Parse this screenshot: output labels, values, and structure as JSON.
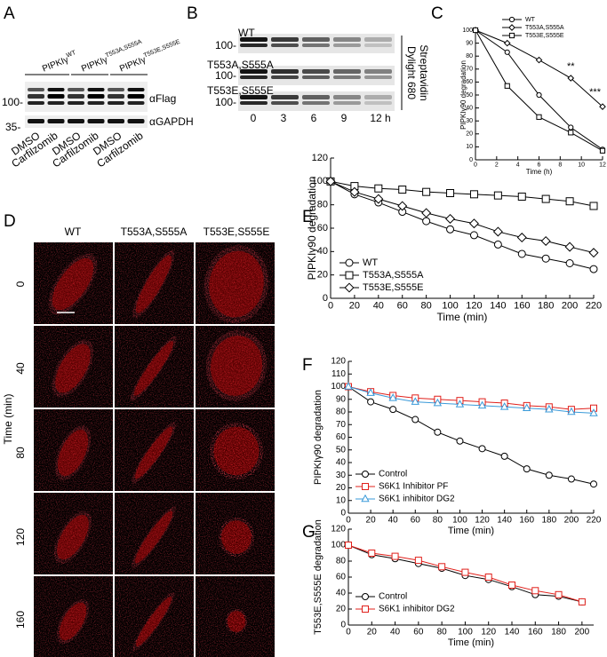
{
  "panels": {
    "a": {
      "letter": "A",
      "groups": [
        {
          "base": "PIPKIγ",
          "sup": "WT"
        },
        {
          "base": "PIPKIγ",
          "sup": "T553A,S555A"
        },
        {
          "base": "PIPKIγ",
          "sup": "T553E,S555E"
        }
      ],
      "antibodies": [
        "αFlag",
        "αGAPDH"
      ],
      "markers": [
        "100-",
        "35-"
      ],
      "lanes": [
        "DMSO",
        "Carfilzomib",
        "DMSO",
        "Carfilzomib",
        "DMSO",
        "Carfilzomib"
      ]
    },
    "b": {
      "letter": "B",
      "rows": [
        "WT",
        "T553A,S555A",
        "T553E,S555E"
      ],
      "marker": "100-",
      "times": [
        "0",
        "3",
        "6",
        "9",
        "12 h"
      ],
      "side": [
        "Dylight 680",
        "Streptavidin"
      ]
    },
    "c": {
      "letter": "C"
    },
    "d": {
      "letter": "D",
      "columns": [
        "WT",
        "T553A,S555A",
        "T553E,S555E"
      ],
      "rows": [
        "0",
        "40",
        "80",
        "120",
        "160"
      ],
      "axis": "Time (min)"
    },
    "e": {
      "letter": "E"
    },
    "f": {
      "letter": "F"
    },
    "g": {
      "letter": "G"
    }
  },
  "chart_data": [
    {
      "type": "line",
      "xlabel": "Time (h)",
      "ylabel": "PIPKIγ90 degradation",
      "x": [
        0,
        3,
        6,
        9,
        12
      ],
      "xlim": [
        0,
        12
      ],
      "xticks": [
        0,
        2,
        4,
        6,
        8,
        10,
        12
      ],
      "ylim": [
        0,
        100
      ],
      "yticks": [
        0,
        10,
        20,
        30,
        40,
        50,
        60,
        70,
        80,
        90,
        100
      ],
      "legend": "upper right",
      "annotations": [
        "**",
        "***"
      ],
      "series": [
        {
          "name": "WT",
          "color": "#000000",
          "marker": "circle",
          "values": [
            100,
            83,
            50,
            25,
            8
          ]
        },
        {
          "name": "T553A,S555A",
          "color": "#000000",
          "marker": "diamond",
          "values": [
            100,
            90,
            77,
            63,
            41
          ]
        },
        {
          "name": "T553E,S555E",
          "color": "#000000",
          "marker": "square",
          "values": [
            100,
            57,
            33,
            21,
            7
          ]
        }
      ]
    },
    {
      "type": "line",
      "xlabel": "Time (min)",
      "ylabel": "PIPKIγ90 degradation",
      "x": [
        0,
        20,
        40,
        60,
        80,
        100,
        120,
        140,
        160,
        180,
        200,
        220
      ],
      "xlim": [
        0,
        220
      ],
      "xticks": [
        0,
        20,
        40,
        60,
        80,
        100,
        120,
        140,
        160,
        180,
        200,
        220
      ],
      "ylim": [
        0,
        120
      ],
      "yticks": [
        0,
        20,
        40,
        60,
        80,
        100,
        120
      ],
      "legend": "lower left",
      "series": [
        {
          "name": "WT",
          "color": "#000000",
          "marker": "circle",
          "values": [
            100,
            89,
            82,
            74,
            66,
            59,
            54,
            46,
            38,
            34,
            30,
            25
          ]
        },
        {
          "name": "T553A,S555A",
          "color": "#000000",
          "marker": "square",
          "values": [
            100,
            96,
            94,
            93,
            91,
            90,
            89,
            88,
            87,
            85,
            83,
            79
          ]
        },
        {
          "name": "T553E,S555E",
          "color": "#000000",
          "marker": "diamond",
          "values": [
            100,
            91,
            85,
            79,
            73,
            68,
            64,
            57,
            52,
            49,
            44,
            39
          ]
        }
      ]
    },
    {
      "type": "line",
      "xlabel": "Time (min)",
      "ylabel": "PIPKIγ90 degradation",
      "x": [
        0,
        20,
        40,
        60,
        80,
        100,
        120,
        140,
        160,
        180,
        200,
        220
      ],
      "xlim": [
        0,
        220
      ],
      "xticks": [
        0,
        20,
        40,
        60,
        80,
        100,
        120,
        140,
        160,
        180,
        200,
        220
      ],
      "ylim": [
        0,
        120
      ],
      "yticks": [
        0,
        10,
        20,
        30,
        40,
        50,
        60,
        70,
        80,
        90,
        100,
        110,
        120
      ],
      "legend": "lower left",
      "series": [
        {
          "name": "Control",
          "color": "#000000",
          "marker": "circle",
          "values": [
            100,
            88,
            82,
            74,
            64,
            57,
            51,
            45,
            35,
            30,
            27,
            23
          ]
        },
        {
          "name": "S6K1 Inhibitor PF",
          "color": "#e0201b",
          "marker": "square",
          "values": [
            100,
            96,
            93,
            91,
            90,
            89,
            88,
            87,
            85,
            84,
            82,
            83
          ]
        },
        {
          "name": "S6K1 inhibitor DG2",
          "color": "#3a9ad9",
          "marker": "triangle",
          "values": [
            100,
            95,
            91,
            88,
            87,
            86,
            85,
            84,
            83,
            82,
            80,
            79
          ]
        }
      ]
    },
    {
      "type": "line",
      "xlabel": "Time (min)",
      "ylabel": "T553E,S555E degradation",
      "x": [
        0,
        20,
        40,
        60,
        80,
        100,
        120,
        140,
        160,
        180,
        200
      ],
      "xlim": [
        0,
        210
      ],
      "xticks": [
        0,
        20,
        40,
        60,
        80,
        100,
        120,
        140,
        160,
        180,
        200
      ],
      "ylim": [
        0,
        120
      ],
      "yticks": [
        0,
        20,
        40,
        60,
        80,
        100,
        120
      ],
      "legend": "lower left",
      "series": [
        {
          "name": "Control",
          "color": "#000000",
          "marker": "circle",
          "values": [
            100,
            88,
            83,
            77,
            71,
            62,
            57,
            48,
            38,
            36,
            29
          ]
        },
        {
          "name": "S6K1 inhibitor DG2",
          "color": "#e0201b",
          "marker": "square",
          "values": [
            100,
            90,
            86,
            81,
            73,
            66,
            60,
            50,
            43,
            38,
            29
          ]
        }
      ]
    }
  ]
}
